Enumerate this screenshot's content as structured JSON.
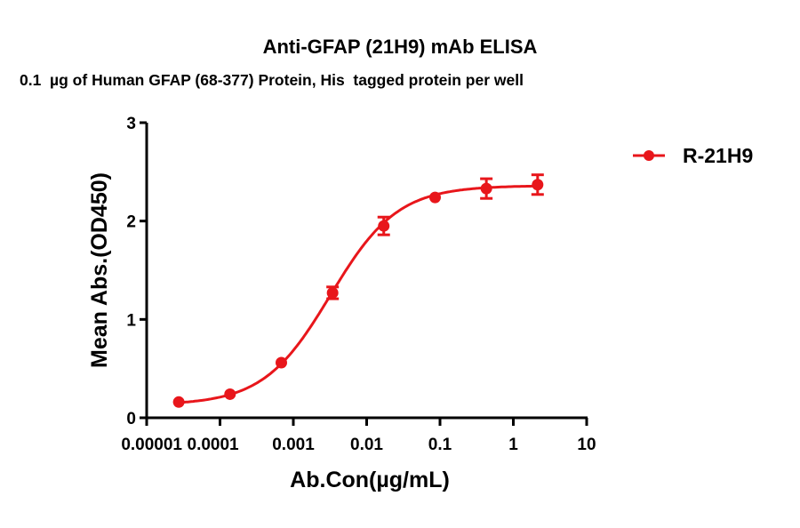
{
  "chart_data": {
    "type": "line",
    "title": "Anti-GFAP (21H9) mAb ELISA",
    "subtitle": "0.1  µg of Human GFAP (68-377) Protein, His  tagged protein per well",
    "xlabel": "Ab.Con(µg/mL)",
    "ylabel": "Mean Abs.(OD450)",
    "xscale": "log",
    "xlim": [
      1e-05,
      10
    ],
    "ylim": [
      0,
      3
    ],
    "x_ticks": [
      "0.00001",
      "0.0001",
      "0.001",
      "0.01",
      "0.1",
      "1",
      "10"
    ],
    "x_tick_values": [
      1e-05,
      0.0001,
      0.001,
      0.01,
      0.1,
      1,
      10
    ],
    "y_ticks": [
      "0",
      "1",
      "2",
      "3"
    ],
    "y_tick_values": [
      0,
      1,
      2,
      3
    ],
    "grid": false,
    "legend_position": "right",
    "color": "#e8161b",
    "series": [
      {
        "name": "R-21H9",
        "x": [
          2.74e-05,
          0.000137,
          0.000686,
          0.00343,
          0.0171,
          0.0857,
          0.4286,
          2.143
        ],
        "values": [
          0.16,
          0.24,
          0.56,
          1.27,
          1.95,
          2.24,
          2.33,
          2.37
        ],
        "errors": [
          0.01,
          0.01,
          0.02,
          0.06,
          0.09,
          0.02,
          0.1,
          0.1
        ],
        "fit": "4PL sigmoid"
      }
    ]
  },
  "legend": {
    "label": "R-21H9"
  }
}
